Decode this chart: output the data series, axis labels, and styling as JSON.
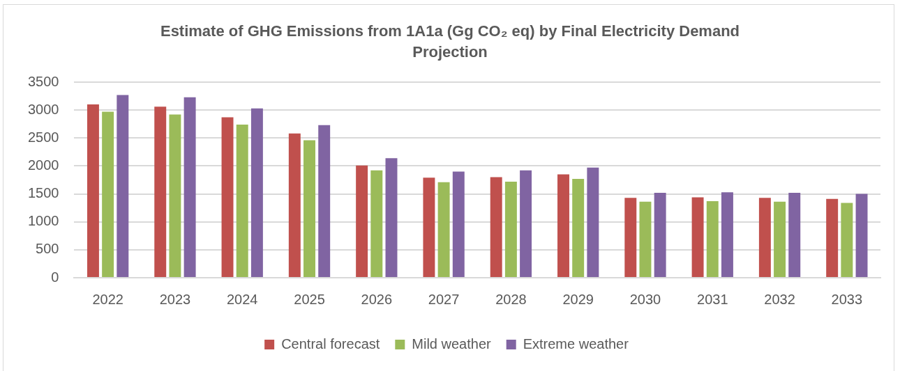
{
  "chart_data": {
    "type": "bar",
    "title": "Estimate of GHG Emissions from 1A1a (Gg CO₂ eq) by Final Electricity Demand Projection",
    "categories": [
      "2022",
      "2023",
      "2024",
      "2025",
      "2026",
      "2027",
      "2028",
      "2029",
      "2030",
      "2031",
      "2032",
      "2033"
    ],
    "series": [
      {
        "name": "Central forecast",
        "color": "#c0504d",
        "values": [
          3100,
          3060,
          2870,
          2580,
          2010,
          1790,
          1800,
          1850,
          1430,
          1440,
          1430,
          1410
        ]
      },
      {
        "name": "Mild weather",
        "color": "#9bbb59",
        "values": [
          2970,
          2920,
          2740,
          2460,
          1920,
          1710,
          1720,
          1770,
          1360,
          1370,
          1360,
          1340
        ]
      },
      {
        "name": "Extreme weather",
        "color": "#8064a2",
        "values": [
          3270,
          3230,
          3030,
          2730,
          2140,
          1900,
          1920,
          1970,
          1520,
          1530,
          1520,
          1500
        ]
      }
    ],
    "ylim": [
      0,
      3500
    ],
    "yticks": [
      0,
      500,
      1000,
      1500,
      2000,
      2500,
      3000,
      3500
    ],
    "grid": "y",
    "legend": "bottom"
  }
}
